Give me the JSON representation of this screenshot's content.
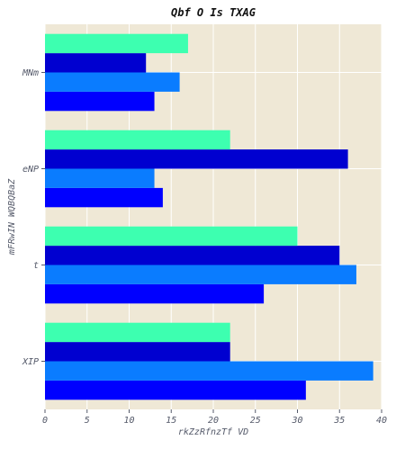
{
  "chart_data": {
    "type": "bar",
    "orientation": "horizontal",
    "title": "Qbf O Is TXAG",
    "xlabel": "rkZzRfnzTf VD",
    "ylabel": "mFRwIN WQBQBaZ",
    "categories": [
      "XIP",
      "t",
      "eNP",
      "MNm"
    ],
    "series": [
      {
        "color": "#0000ff",
        "values": [
          31,
          26,
          14,
          13
        ]
      },
      {
        "color": "#0a7cff",
        "values": [
          39,
          37,
          13,
          16
        ]
      },
      {
        "color": "#0000d0",
        "values": [
          22,
          35,
          36,
          12
        ]
      },
      {
        "color": "#3dffb0",
        "values": [
          22,
          30,
          22,
          17
        ]
      }
    ],
    "xlim": [
      0,
      40
    ],
    "xticks": [
      0,
      5,
      10,
      15,
      20,
      25,
      30,
      35,
      40
    ],
    "grid": true,
    "background": "#efe8d6",
    "grid_color": "#ffffff"
  }
}
